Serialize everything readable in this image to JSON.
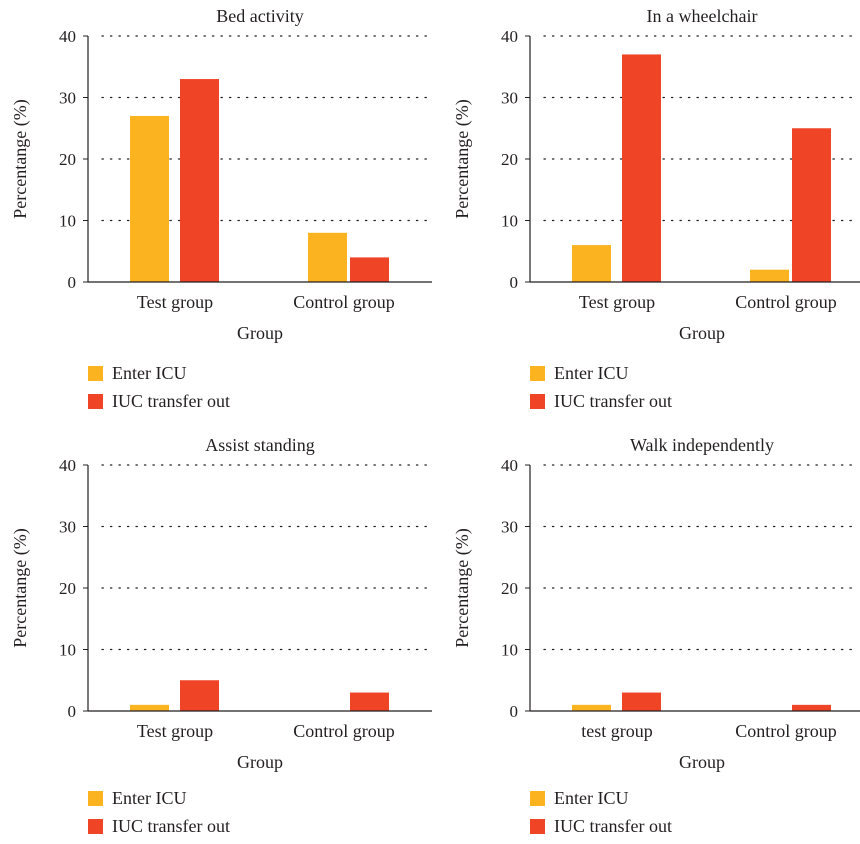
{
  "legend_labels": [
    "Enter ICU",
    "IUC transfer out"
  ],
  "colors": {
    "enter_icu": "#fbb31f",
    "transfer_out": "#ef4426",
    "axis": "#231f20"
  },
  "chart_data": [
    {
      "type": "bar",
      "title": "Bed activity",
      "xlabel": "Group",
      "ylabel": "Percentange (%)",
      "ylim": [
        0,
        40
      ],
      "yticks": [
        0,
        10,
        20,
        30,
        40
      ],
      "grid": "horizontal dotted",
      "legend_position": "bottom-left",
      "categories": [
        "Test group",
        "Control group"
      ],
      "series": [
        {
          "name": "Enter ICU",
          "values": [
            27,
            8
          ]
        },
        {
          "name": "IUC transfer out",
          "values": [
            33,
            4
          ]
        }
      ]
    },
    {
      "type": "bar",
      "title": "In a wheelchair",
      "xlabel": "Group",
      "ylabel": "Percentange (%)",
      "ylim": [
        0,
        40
      ],
      "yticks": [
        0,
        10,
        20,
        30,
        40
      ],
      "grid": "horizontal dotted",
      "legend_position": "bottom-left",
      "categories": [
        "Test group",
        "Control group"
      ],
      "series": [
        {
          "name": "Enter ICU",
          "values": [
            6,
            2
          ]
        },
        {
          "name": "IUC transfer out",
          "values": [
            37,
            25
          ]
        }
      ]
    },
    {
      "type": "bar",
      "title": "Assist standing",
      "xlabel": "Group",
      "ylabel": "Percentange (%)",
      "ylim": [
        0,
        40
      ],
      "yticks": [
        0,
        10,
        20,
        30,
        40
      ],
      "grid": "horizontal dotted",
      "legend_position": "bottom-left",
      "categories": [
        "Test group",
        "Control group"
      ],
      "series": [
        {
          "name": "Enter ICU",
          "values": [
            1,
            0
          ]
        },
        {
          "name": "IUC transfer out",
          "values": [
            5,
            3
          ]
        }
      ]
    },
    {
      "type": "bar",
      "title": "Walk independently",
      "xlabel": "Group",
      "ylabel": "Percentange (%)",
      "ylim": [
        0,
        40
      ],
      "yticks": [
        0,
        10,
        20,
        30,
        40
      ],
      "grid": "horizontal dotted",
      "legend_position": "bottom-left",
      "categories": [
        "test group",
        "Control group"
      ],
      "series": [
        {
          "name": "Enter ICU",
          "values": [
            1,
            0
          ]
        },
        {
          "name": "IUC transfer out",
          "values": [
            3,
            1
          ]
        }
      ]
    }
  ]
}
